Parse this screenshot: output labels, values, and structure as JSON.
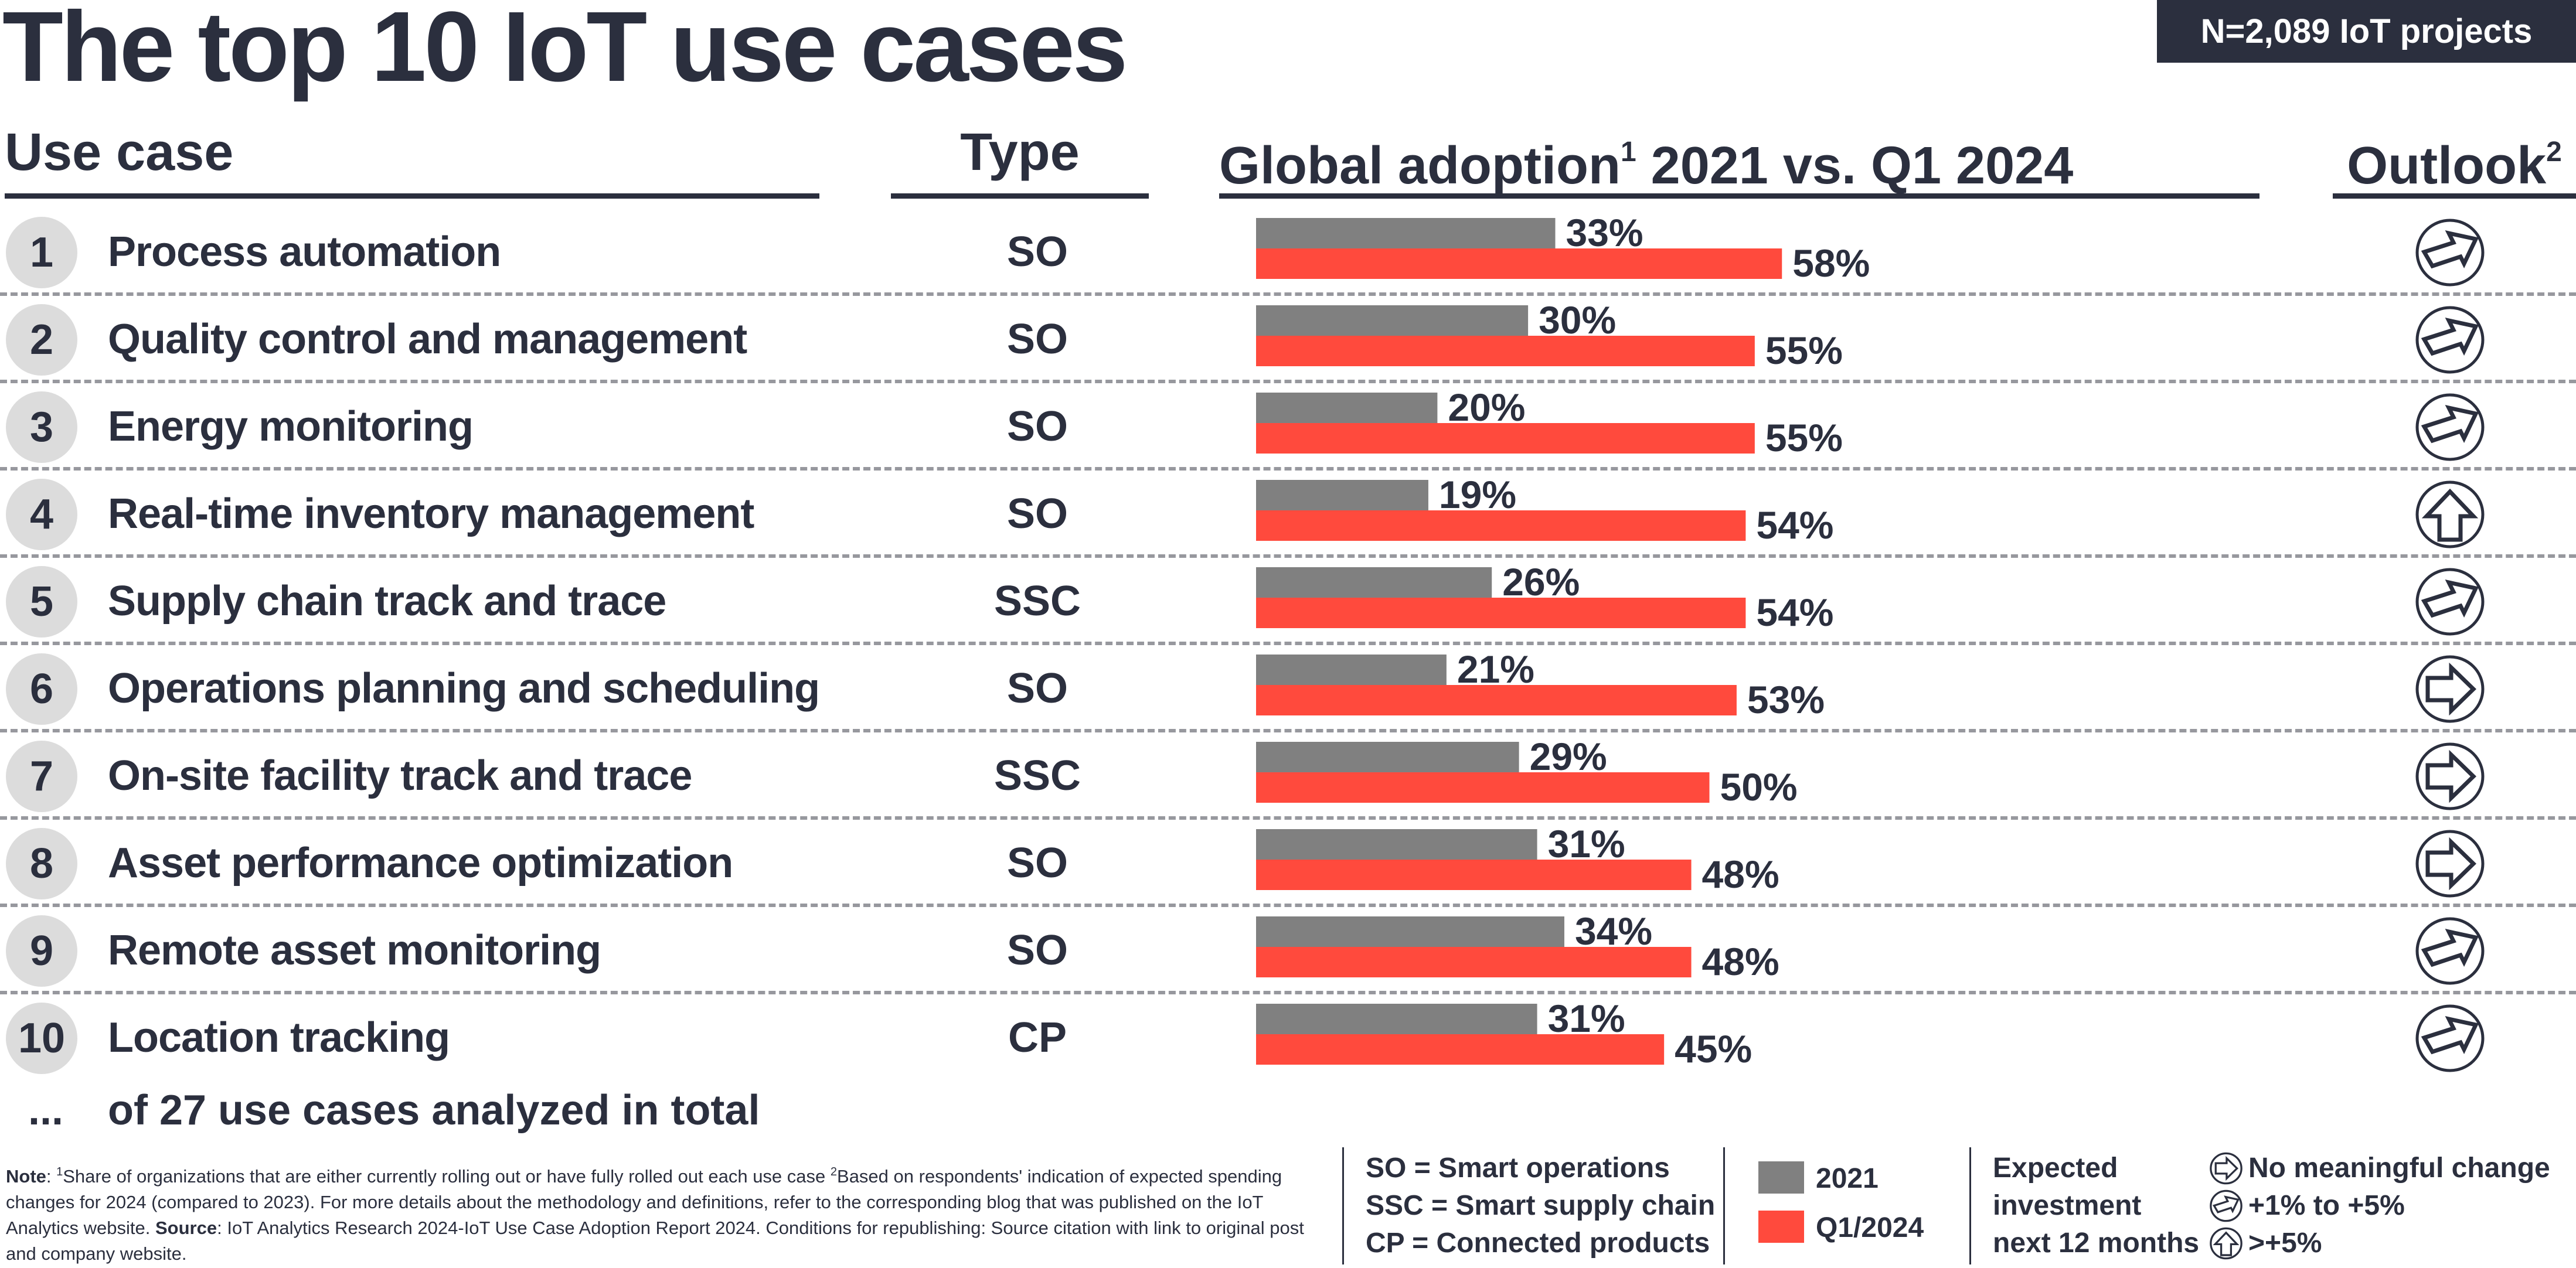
{
  "header": {
    "title": "The top 10 IoT use cases",
    "sample_badge": "N=2,089 IoT projects"
  },
  "columns": {
    "use_case": "Use case",
    "type": "Type",
    "adoption": "Global adoption",
    "adoption_sup": "1",
    "adoption_tail": " 2021 vs. Q1 2024",
    "outlook": "Outlook",
    "outlook_sup": "2"
  },
  "rows": [
    {
      "rank": "1",
      "name": "Process automation",
      "type": "SO",
      "outlook": "up-right"
    },
    {
      "rank": "2",
      "name": "Quality control and management",
      "type": "SO",
      "outlook": "up-right"
    },
    {
      "rank": "3",
      "name": "Energy monitoring",
      "type": "SO",
      "outlook": "up-right"
    },
    {
      "rank": "4",
      "name": "Real-time inventory management",
      "type": "SO",
      "outlook": "up"
    },
    {
      "rank": "5",
      "name": "Supply chain track and trace",
      "type": "SSC",
      "outlook": "up-right"
    },
    {
      "rank": "6",
      "name": "Operations planning and scheduling",
      "type": "SO",
      "outlook": "right"
    },
    {
      "rank": "7",
      "name": "On-site facility track and trace",
      "type": "SSC",
      "outlook": "right"
    },
    {
      "rank": "8",
      "name": "Asset performance optimization",
      "type": "SO",
      "outlook": "right"
    },
    {
      "rank": "9",
      "name": "Remote asset monitoring",
      "type": "SO",
      "outlook": "up-right"
    },
    {
      "rank": "10",
      "name": "Location tracking",
      "type": "CP",
      "outlook": "up-right"
    }
  ],
  "more": {
    "ellipsis": "...",
    "text": "of 27 use cases analyzed in total"
  },
  "chart_data": {
    "type": "bar",
    "orientation": "horizontal",
    "title": "Global adoption 2021 vs. Q1 2024",
    "xlabel": "",
    "ylabel": "",
    "unit": "%",
    "xlim": [
      0,
      100
    ],
    "grid": false,
    "categories": [
      "Process automation",
      "Quality control and management",
      "Energy monitoring",
      "Real-time inventory management",
      "Supply chain track and trace",
      "Operations planning and scheduling",
      "On-site facility track and trace",
      "Asset performance optimization",
      "Remote asset monitoring",
      "Location tracking"
    ],
    "series": [
      {
        "name": "2021",
        "color": "#808080",
        "values": [
          33,
          30,
          20,
          19,
          26,
          21,
          29,
          31,
          34,
          31
        ]
      },
      {
        "name": "Q1/2024",
        "color": "#ff4a3d",
        "values": [
          58,
          55,
          55,
          54,
          54,
          53,
          50,
          48,
          48,
          45
        ]
      }
    ],
    "legend_placement": "bottom"
  },
  "footer": {
    "note_label": "Note",
    "note_sup1": "1",
    "note_text1": "Share of organizations that are either currently rolling out or have fully rolled out each use case ",
    "note_sup2": "2",
    "note_text2": "Based on respondents' indication of expected spending changes for 2024 (compared to 2023). For more details about the methodology and definitions, refer to the corresponding blog that was published on the IoT Analytics website. ",
    "source_label": "Source",
    "source_text": ": IoT Analytics Research 2024-IoT Use Case Adoption Report 2024. Conditions for republishing: Source citation with link to original post and company website."
  },
  "legend": {
    "types": [
      "SO = Smart operations",
      "SSC = Smart supply chain",
      "CP = Connected products"
    ],
    "series": [
      {
        "label": "2021",
        "color": "#808080"
      },
      {
        "label": "Q1/2024",
        "color": "#ff4a3d"
      }
    ],
    "investment_label": [
      "Expected",
      "investment",
      "next 12 months"
    ],
    "outlook_items": [
      {
        "icon": "right",
        "label": "No meaningful change"
      },
      {
        "icon": "up-right",
        "label": "+1% to +5%"
      },
      {
        "icon": "up",
        "label": ">+5%"
      }
    ]
  },
  "colors": {
    "text": "#2b2f3e",
    "bar_2021": "#808080",
    "bar_2024": "#ff4a3d",
    "divider": "#97989e",
    "rank_bg": "#dcdcdc"
  }
}
